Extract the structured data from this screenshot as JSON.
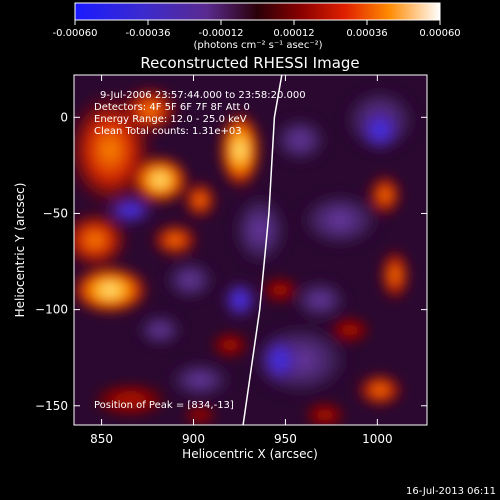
{
  "colorbar": {
    "ticks": [
      "-0.00060",
      "-0.00036",
      "-0.00012",
      "0.00012",
      "0.00036",
      "0.00060"
    ],
    "tick_values": [
      -0.0006,
      -0.00036,
      -0.00012,
      0.00012,
      0.00036,
      0.0006
    ],
    "range": [
      -0.0006,
      0.0006
    ],
    "units_label": "(photons cm⁻² s⁻¹ asec⁻²)"
  },
  "plot": {
    "title": "Reconstructed RHESSI Image",
    "xlabel": "Heliocentric X (arcsec)",
    "ylabel": "Heliocentric Y (arcsec)",
    "x_ticks": [
      "850",
      "900",
      "950",
      "1000"
    ],
    "x_tick_values": [
      850,
      900,
      950,
      1000
    ],
    "y_ticks": [
      "0",
      "−50",
      "−100",
      "−150"
    ],
    "y_tick_values": [
      0,
      -50,
      -100,
      -150
    ],
    "xlim": [
      835,
      1027
    ],
    "ylim": [
      -160,
      22
    ],
    "annotations": {
      "time": "9-Jul-2006 23:57:44.000 to 23:58:20.000",
      "detectors": "Detectors: 4F 5F 6F 7F 8F Att 0",
      "energy": "Energy Range: 12.0 - 25.0 keV",
      "clean": "Clean    Total counts: 1.31e+03",
      "peak": "Position of Peak = [834,-13]"
    }
  },
  "footer": {
    "timestamp": "16-Jul-2013 06:11"
  },
  "chart_data": {
    "type": "heatmap",
    "title": "Reconstructed RHESSI Image",
    "xlabel": "Heliocentric X (arcsec)",
    "ylabel": "Heliocentric Y (arcsec)",
    "xlim": [
      835,
      1027
    ],
    "ylim": [
      -160,
      22
    ],
    "colorscale": "red-temperature diverging (blue negative, white positive)",
    "zlim": [
      -0.0006,
      0.0006
    ],
    "limb_line": [
      [
        948,
        22
      ],
      [
        944,
        0
      ],
      [
        941,
        -50
      ],
      [
        936,
        -100
      ],
      [
        927,
        -160
      ]
    ],
    "peak": [
      834,
      -13
    ]
  }
}
